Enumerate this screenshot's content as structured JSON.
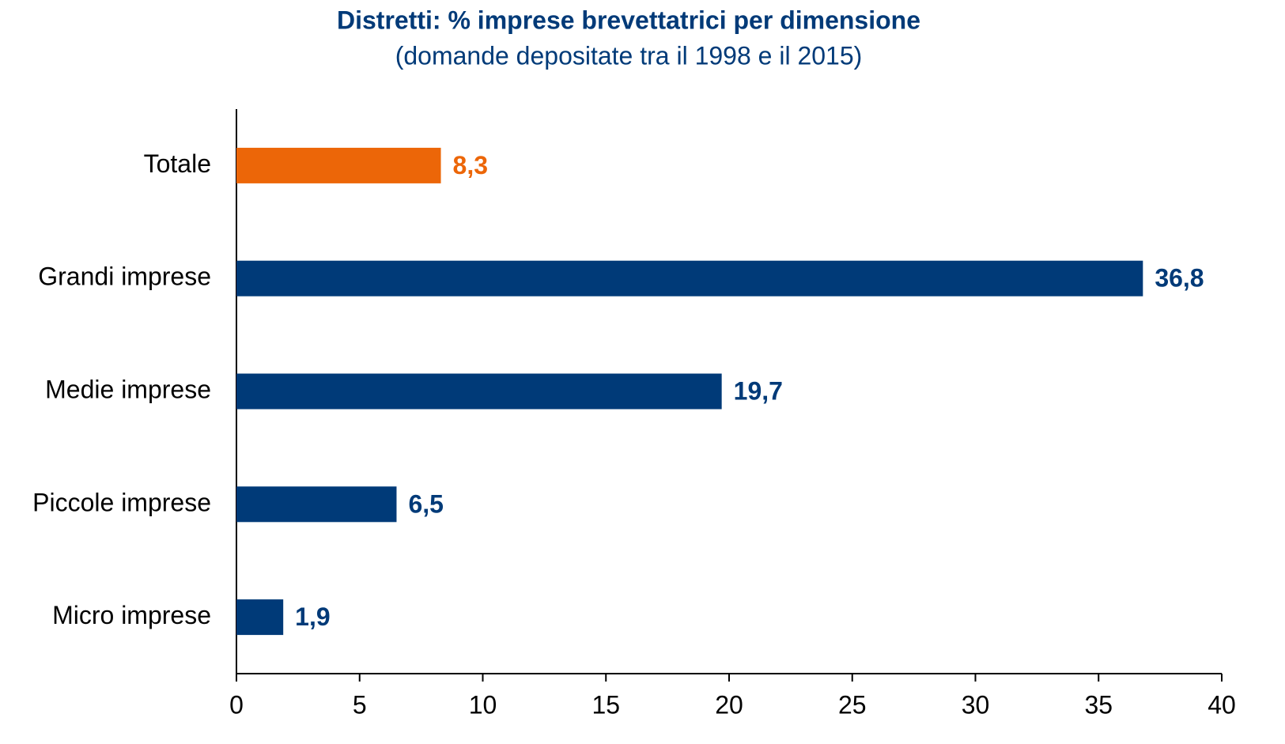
{
  "chart_data": {
    "type": "barh",
    "title": "Distretti: % imprese brevettatrici per dimensione",
    "subtitle": "(domande depositate tra il 1998 e il 2015)",
    "categories": [
      "Totale",
      "Grandi imprese",
      "Medie imprese",
      "Piccole imprese",
      "Micro imprese"
    ],
    "values": [
      8.3,
      36.8,
      19.7,
      6.5,
      1.9
    ],
    "value_labels": [
      "8,3",
      "36,8",
      "19,7",
      "6,5",
      "1,9"
    ],
    "colors": [
      "#ec6608",
      "#003a78",
      "#003a78",
      "#003a78",
      "#003a78"
    ],
    "xlim": [
      0,
      40
    ],
    "xticks": [
      0,
      5,
      10,
      15,
      20,
      25,
      30,
      35,
      40
    ],
    "grid": false
  }
}
